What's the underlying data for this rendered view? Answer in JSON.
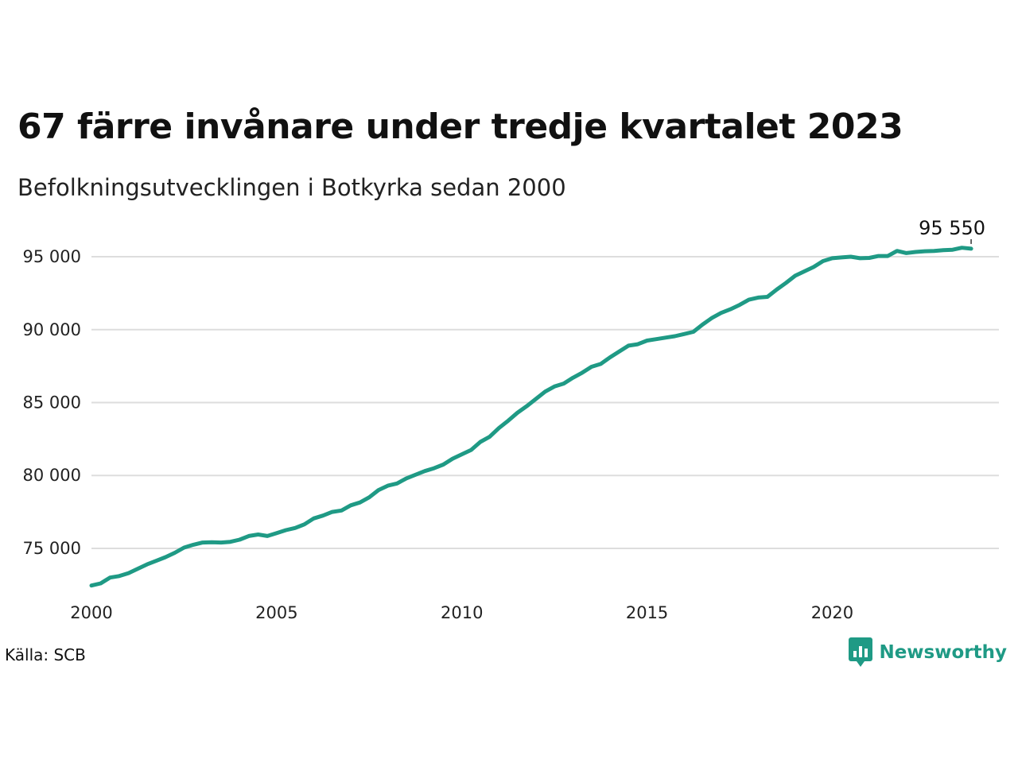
{
  "header": {
    "title": "67 färre invånare under tredje kvartalet 2023",
    "subtitle": "Befolkningsutvecklingen i Botkyrka sedan 2000"
  },
  "footer": {
    "source": "Källa: SCB",
    "brand": "Newsworthy",
    "brand_icon": "bar-chart-speech-bubble-icon"
  },
  "colors": {
    "line": "#1f9a85",
    "grid": "#dddddd",
    "brand": "#1f9a85"
  },
  "chart_data": {
    "type": "line",
    "title": "67 färre invånare under tredje kvartalet 2023",
    "subtitle": "Befolkningsutvecklingen i Botkyrka sedan 2000",
    "xlabel": "",
    "ylabel": "",
    "x_ticks": [
      2000,
      2005,
      2010,
      2015,
      2020
    ],
    "x_tick_labels": [
      "2000",
      "2005",
      "2010",
      "2015",
      "2020"
    ],
    "y_ticks": [
      75000,
      80000,
      85000,
      90000,
      95000
    ],
    "y_tick_labels": [
      "75 000",
      "80 000",
      "85 000",
      "90 000",
      "95 000"
    ],
    "xlim": [
      2000,
      2024.5
    ],
    "ylim": [
      72000,
      96800
    ],
    "grid": "horizontal",
    "legend": "none",
    "end_label": "95 550",
    "series": [
      {
        "x": [
          2000.0,
          2000.25,
          2000.5,
          2000.75,
          2001.0,
          2001.25,
          2001.5,
          2001.75,
          2002.0,
          2002.25,
          2002.5,
          2002.75,
          2003.0,
          2003.25,
          2003.5,
          2003.75,
          2004.0,
          2004.25,
          2004.5,
          2004.75,
          2005.0,
          2005.25,
          2005.5,
          2005.75,
          2006.0,
          2006.25,
          2006.5,
          2006.75,
          2007.0,
          2007.25,
          2007.5,
          2007.75,
          2008.0,
          2008.25,
          2008.5,
          2008.75,
          2009.0,
          2009.25,
          2009.5,
          2009.75,
          2010.0,
          2010.25,
          2010.5,
          2010.75,
          2011.0,
          2011.25,
          2011.5,
          2011.75,
          2012.0,
          2012.25,
          2012.5,
          2012.75,
          2013.0,
          2013.25,
          2013.5,
          2013.75,
          2014.0,
          2014.25,
          2014.5,
          2014.75,
          2015.0,
          2015.25,
          2015.5,
          2015.75,
          2016.0,
          2016.25,
          2016.5,
          2016.75,
          2017.0,
          2017.25,
          2017.5,
          2017.75,
          2018.0,
          2018.25,
          2018.5,
          2018.75,
          2019.0,
          2019.25,
          2019.5,
          2019.75,
          2020.0,
          2020.25,
          2020.5,
          2020.75,
          2021.0,
          2021.25,
          2021.5,
          2021.75,
          2022.0,
          2022.25,
          2022.5,
          2022.75,
          2023.0,
          2023.25,
          2023.5,
          2023.75
        ],
        "values": [
          72450,
          72600,
          73000,
          73100,
          73300,
          73600,
          73900,
          74150,
          74400,
          74700,
          75050,
          75250,
          75400,
          75420,
          75400,
          75450,
          75600,
          75850,
          75950,
          75850,
          76050,
          76250,
          76400,
          76650,
          77050,
          77250,
          77500,
          77600,
          77950,
          78150,
          78500,
          79000,
          79300,
          79450,
          79800,
          80050,
          80300,
          80500,
          80750,
          81150,
          81450,
          81750,
          82300,
          82650,
          83250,
          83750,
          84300,
          84750,
          85250,
          85750,
          86100,
          86300,
          86700,
          87050,
          87450,
          87650,
          88100,
          88500,
          88900,
          89000,
          89250,
          89350,
          89450,
          89550,
          89700,
          89850,
          90350,
          90800,
          91150,
          91400,
          91700,
          92050,
          92200,
          92250,
          92750,
          93200,
          93700,
          94000,
          94300,
          94700,
          94900,
          94950,
          95000,
          94900,
          94920,
          95050,
          95050,
          95400,
          95250,
          95330,
          95380,
          95400,
          95450,
          95480,
          95617,
          95550
        ]
      }
    ]
  }
}
